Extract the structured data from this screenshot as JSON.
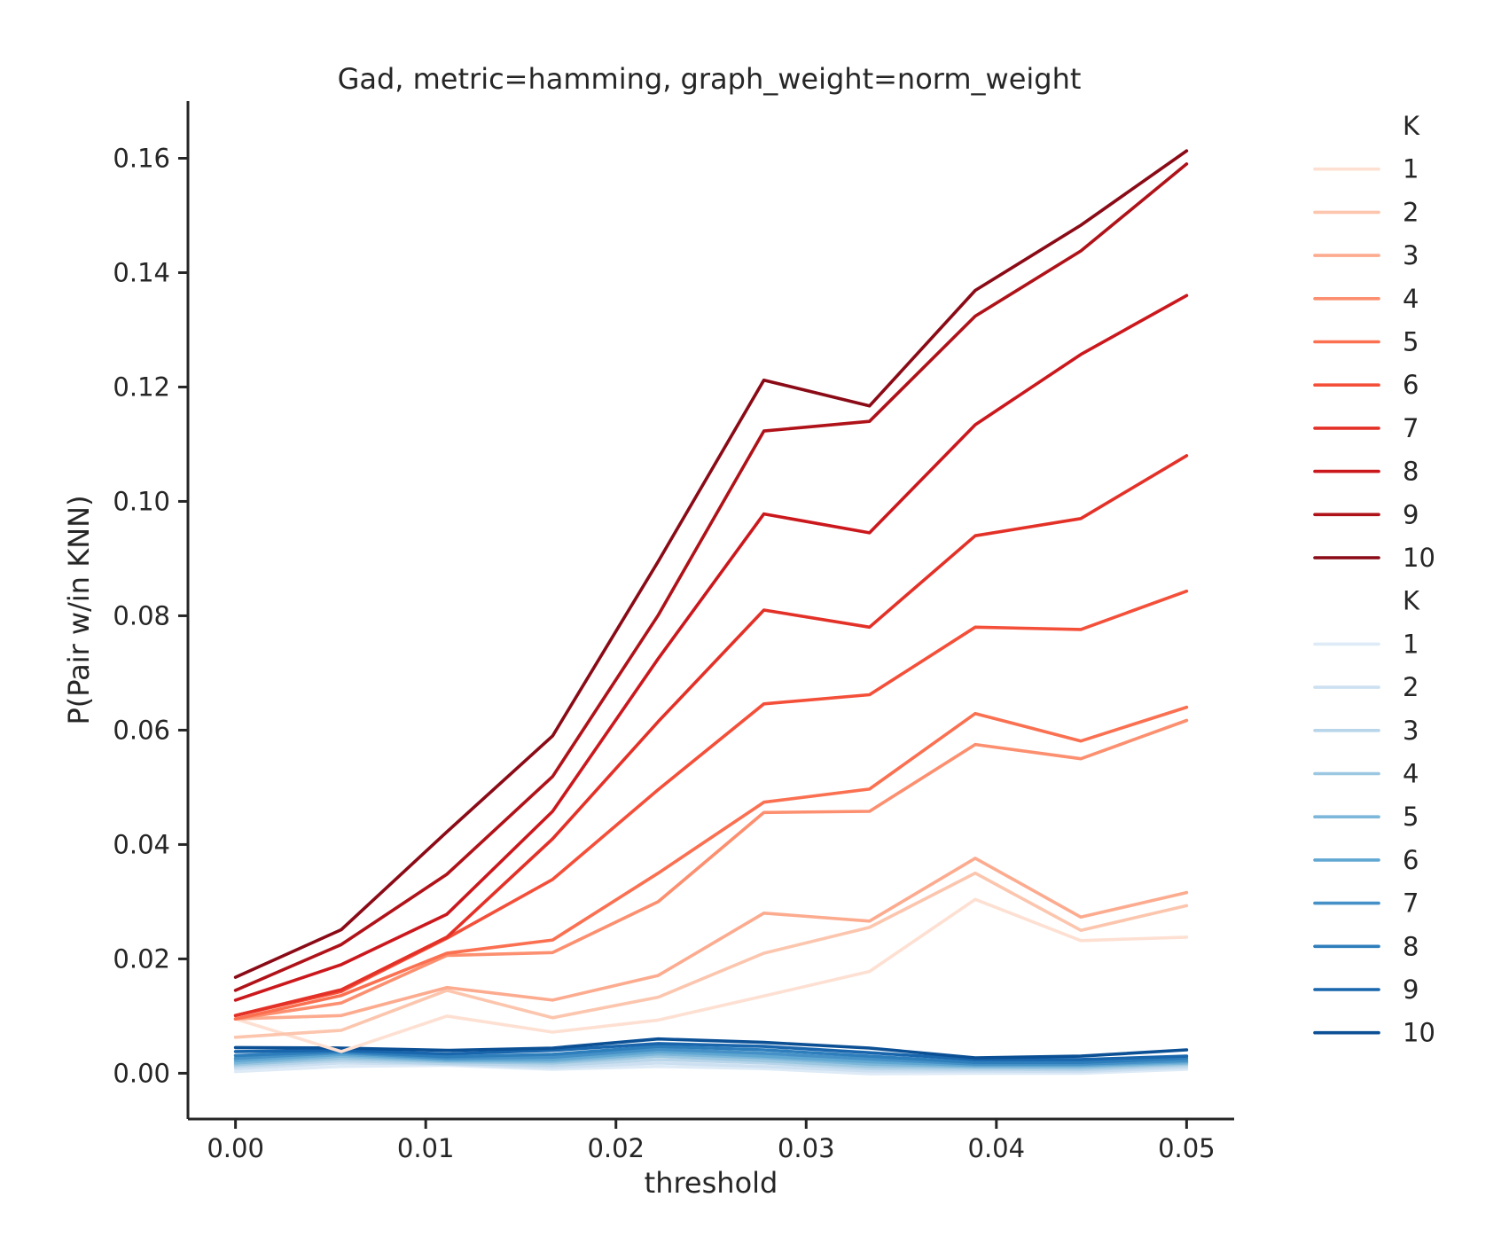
{
  "chart_data": {
    "type": "line",
    "title": "Gad, metric=hamming, graph_weight=norm_weight",
    "xlabel": "threshold",
    "ylabel": "P(Pair w/in KNN)",
    "xlim": [
      -0.0025,
      0.0525
    ],
    "ylim": [
      -0.008,
      0.17
    ],
    "x_ticks": [
      0.0,
      0.01,
      0.02,
      0.03,
      0.04,
      0.05
    ],
    "x_tick_labels": [
      "0.00",
      "0.01",
      "0.02",
      "0.03",
      "0.04",
      "0.05"
    ],
    "y_ticks": [
      0.0,
      0.02,
      0.04,
      0.06,
      0.08,
      0.1,
      0.12,
      0.14,
      0.16
    ],
    "y_tick_labels": [
      "0.00",
      "0.02",
      "0.04",
      "0.06",
      "0.08",
      "0.10",
      "0.12",
      "0.14",
      "0.16"
    ],
    "grid": false,
    "legend_placement": "outside-right",
    "x": [
      0.0,
      0.00556,
      0.01111,
      0.01667,
      0.02222,
      0.02778,
      0.03333,
      0.03889,
      0.04444,
      0.05
    ],
    "legend_groups": [
      {
        "title": "K",
        "entries": [
          "1",
          "2",
          "3",
          "4",
          "5",
          "6",
          "7",
          "8",
          "9",
          "10"
        ],
        "colors": [
          "#fee0d2",
          "#fcc5ad",
          "#fcab8f",
          "#fc8f6f",
          "#fa7051",
          "#f44f39",
          "#e33128",
          "#cb181d",
          "#af1218",
          "#8a0a16"
        ]
      },
      {
        "title": "K",
        "entries": [
          "1",
          "2",
          "3",
          "4",
          "5",
          "6",
          "7",
          "8",
          "9",
          "10"
        ],
        "colors": [
          "#deebf7",
          "#cde0f1",
          "#b8d5ea",
          "#9cc7e1",
          "#7db7da",
          "#60a7d2",
          "#4591c7",
          "#2e7ebc",
          "#1966ad",
          "#0b4f94"
        ]
      }
    ],
    "series": [
      {
        "group": 0,
        "values": [
          0.0095,
          0.0038,
          0.01,
          0.0072,
          0.0093,
          0.0135,
          0.0178,
          0.0304,
          0.0232,
          0.0238
        ]
      },
      {
        "group": 0,
        "values": [
          0.0063,
          0.0075,
          0.0145,
          0.0097,
          0.0133,
          0.021,
          0.0255,
          0.035,
          0.025,
          0.0293
        ]
      },
      {
        "group": 0,
        "values": [
          0.0095,
          0.0101,
          0.015,
          0.0128,
          0.0171,
          0.028,
          0.0266,
          0.0376,
          0.0273,
          0.0316
        ]
      },
      {
        "group": 0,
        "values": [
          0.0095,
          0.0123,
          0.0206,
          0.0211,
          0.03,
          0.0456,
          0.0458,
          0.0575,
          0.055,
          0.0617
        ]
      },
      {
        "group": 0,
        "values": [
          0.0095,
          0.0136,
          0.021,
          0.0233,
          0.035,
          0.0474,
          0.0497,
          0.0629,
          0.0581,
          0.064
        ]
      },
      {
        "group": 0,
        "values": [
          0.0101,
          0.0143,
          0.0236,
          0.0339,
          0.0496,
          0.0646,
          0.0662,
          0.078,
          0.0776,
          0.0843
        ]
      },
      {
        "group": 0,
        "values": [
          0.0101,
          0.0146,
          0.0238,
          0.041,
          0.0615,
          0.081,
          0.078,
          0.094,
          0.097,
          0.108
        ]
      },
      {
        "group": 0,
        "values": [
          0.0128,
          0.019,
          0.0278,
          0.0458,
          0.0725,
          0.0978,
          0.0945,
          0.1134,
          0.1257,
          0.136
        ]
      },
      {
        "group": 0,
        "values": [
          0.0145,
          0.0225,
          0.0348,
          0.0519,
          0.0801,
          0.1123,
          0.114,
          0.1324,
          0.1438,
          0.159
        ]
      },
      {
        "group": 0,
        "values": [
          0.0168,
          0.0251,
          0.0422,
          0.059,
          0.0895,
          0.1212,
          0.1167,
          0.1369,
          0.1483,
          0.1613
        ]
      },
      {
        "group": 1,
        "values": [
          0.0003,
          0.0012,
          0.0014,
          0.0007,
          0.0012,
          0.0008,
          -0.0001,
          0.0,
          0.0,
          0.0007
        ]
      },
      {
        "group": 1,
        "values": [
          0.0008,
          0.0018,
          0.0016,
          0.001,
          0.0018,
          0.0012,
          0.0004,
          0.0004,
          0.0003,
          0.001
        ]
      },
      {
        "group": 1,
        "values": [
          0.0012,
          0.0022,
          0.0017,
          0.0014,
          0.0024,
          0.0018,
          0.0008,
          0.0007,
          0.0006,
          0.0013
        ]
      },
      {
        "group": 1,
        "values": [
          0.0015,
          0.0026,
          0.002,
          0.0018,
          0.003,
          0.0022,
          0.0012,
          0.001,
          0.0009,
          0.0016
        ]
      },
      {
        "group": 1,
        "values": [
          0.0018,
          0.003,
          0.0022,
          0.0021,
          0.0034,
          0.0027,
          0.0016,
          0.0012,
          0.0012,
          0.0018
        ]
      },
      {
        "group": 1,
        "values": [
          0.0022,
          0.0033,
          0.0024,
          0.0024,
          0.0038,
          0.003,
          0.002,
          0.0014,
          0.0014,
          0.002
        ]
      },
      {
        "group": 1,
        "values": [
          0.0026,
          0.0036,
          0.0026,
          0.0028,
          0.0042,
          0.0035,
          0.0025,
          0.0016,
          0.0016,
          0.0022
        ]
      },
      {
        "group": 1,
        "values": [
          0.0031,
          0.0038,
          0.0029,
          0.0033,
          0.0047,
          0.0041,
          0.003,
          0.0019,
          0.0019,
          0.0026
        ]
      },
      {
        "group": 1,
        "values": [
          0.0038,
          0.004,
          0.0034,
          0.004,
          0.0052,
          0.0047,
          0.0036,
          0.0024,
          0.0024,
          0.003
        ]
      },
      {
        "group": 1,
        "values": [
          0.0045,
          0.0044,
          0.004,
          0.0044,
          0.006,
          0.0054,
          0.0044,
          0.0027,
          0.003,
          0.0041
        ]
      }
    ]
  }
}
